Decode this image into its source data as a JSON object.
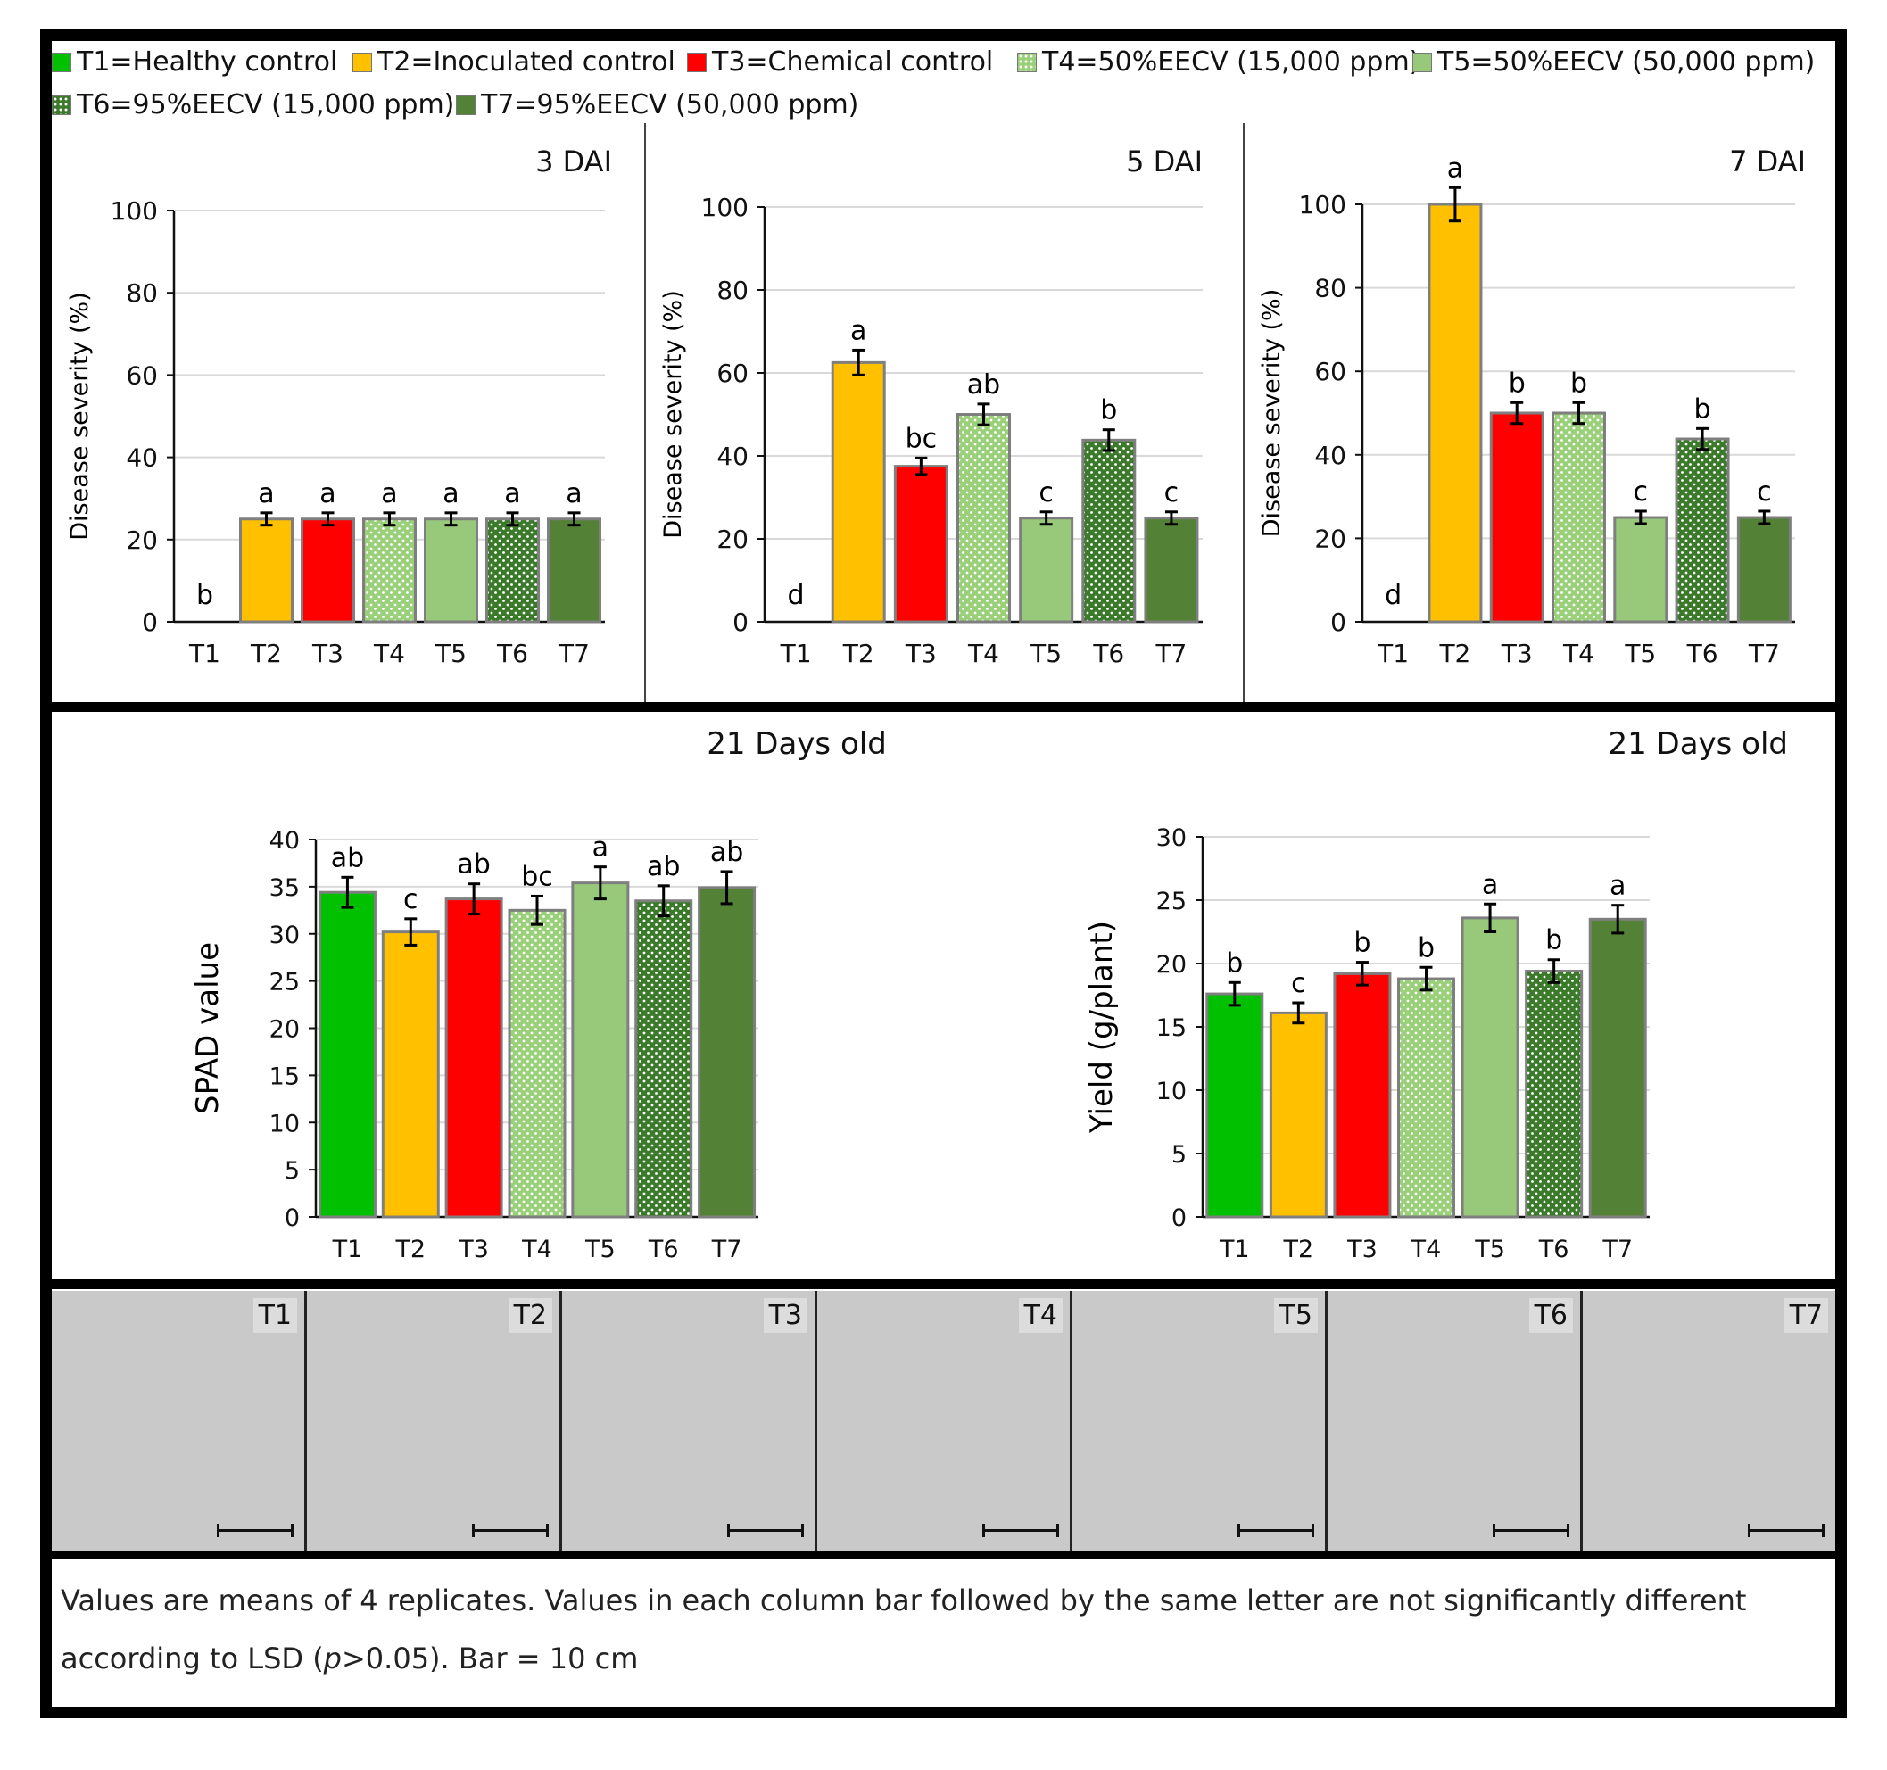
{
  "legend": [
    {
      "key": "T1",
      "label": "T1=Healthy control",
      "color": "#00c000",
      "pattern": "solid"
    },
    {
      "key": "T2",
      "label": "T2=Inoculated control",
      "color": "#ffc000",
      "pattern": "solid"
    },
    {
      "key": "T3",
      "label": "T3=Chemical control",
      "color": "#ff0000",
      "pattern": "solid"
    },
    {
      "key": "T4",
      "label": "T4=50%EECV (15,000 ppm)",
      "color": "#9bd07b",
      "pattern": "dots"
    },
    {
      "key": "T5",
      "label": "T5=50%EECV (50,000 ppm)",
      "color": "#98c97a",
      "pattern": "solid"
    },
    {
      "key": "T6",
      "label": "T6=95%EECV (15,000 ppm)",
      "color": "#3c7a2b",
      "pattern": "dots"
    },
    {
      "key": "T7",
      "label": "T7=95%EECV (50,000 ppm)",
      "color": "#538135",
      "pattern": "solid"
    }
  ],
  "chart_data": [
    {
      "type": "bar",
      "title": "3 DAI",
      "ylabel": "Disease severity (%)",
      "xlabel": "",
      "ylim": [
        0,
        100
      ],
      "yticks": [
        0,
        20,
        40,
        60,
        80,
        100
      ],
      "categories": [
        "T1",
        "T2",
        "T3",
        "T4",
        "T5",
        "T6",
        "T7"
      ],
      "values": [
        0,
        25,
        25,
        25,
        25,
        25,
        25
      ],
      "errors": [
        0,
        1.5,
        1.5,
        1.5,
        1.5,
        1.5,
        1.5
      ],
      "letters": [
        "b",
        "a",
        "a",
        "a",
        "a",
        "a",
        "a"
      ]
    },
    {
      "type": "bar",
      "title": "5 DAI",
      "ylabel": "Disease severity (%)",
      "xlabel": "",
      "ylim": [
        0,
        100
      ],
      "yticks": [
        0,
        20,
        40,
        60,
        80,
        100
      ],
      "categories": [
        "T1",
        "T2",
        "T3",
        "T4",
        "T5",
        "T6",
        "T7"
      ],
      "values": [
        0,
        62.5,
        37.5,
        50,
        25,
        43.8,
        25
      ],
      "errors": [
        0,
        3,
        2,
        2.5,
        1.5,
        2.5,
        1.5
      ],
      "letters": [
        "d",
        "a",
        "bc",
        "ab",
        "c",
        "b",
        "c"
      ]
    },
    {
      "type": "bar",
      "title": "7 DAI",
      "ylabel": "Disease severity (%)",
      "xlabel": "",
      "ylim": [
        0,
        100
      ],
      "yticks": [
        0,
        20,
        40,
        60,
        80,
        100
      ],
      "categories": [
        "T1",
        "T2",
        "T3",
        "T4",
        "T5",
        "T6",
        "T7"
      ],
      "values": [
        0,
        100,
        50,
        50,
        25,
        43.8,
        25
      ],
      "errors": [
        0,
        4,
        2.5,
        2.5,
        1.5,
        2.5,
        1.5
      ],
      "letters": [
        "d",
        "a",
        "b",
        "b",
        "c",
        "b",
        "c"
      ]
    },
    {
      "type": "bar",
      "title": "21 Days old",
      "ylabel": "SPAD value",
      "xlabel": "",
      "ylim": [
        0,
        40
      ],
      "yticks": [
        0,
        5,
        10,
        15,
        20,
        25,
        30,
        35,
        40
      ],
      "categories": [
        "T1",
        "T2",
        "T3",
        "T4",
        "T5",
        "T6",
        "T7"
      ],
      "values": [
        34.4,
        30.2,
        33.7,
        32.5,
        35.4,
        33.5,
        34.9
      ],
      "errors": [
        1.6,
        1.4,
        1.6,
        1.5,
        1.7,
        1.6,
        1.7
      ],
      "letters": [
        "ab",
        "c",
        "ab",
        "bc",
        "a",
        "ab",
        "ab"
      ]
    },
    {
      "type": "bar",
      "title": "21 Days old",
      "ylabel": "Yield (g/plant)",
      "xlabel": "",
      "ylim": [
        0,
        30
      ],
      "yticks": [
        0,
        5,
        10,
        15,
        20,
        25,
        30
      ],
      "categories": [
        "T1",
        "T2",
        "T3",
        "T4",
        "T5",
        "T6",
        "T7"
      ],
      "values": [
        17.6,
        16.1,
        19.2,
        18.8,
        23.6,
        19.4,
        23.5
      ],
      "errors": [
        0.9,
        0.8,
        0.9,
        0.9,
        1.1,
        0.9,
        1.1
      ],
      "letters": [
        "b",
        "c",
        "b",
        "b",
        "a",
        "b",
        "a"
      ]
    }
  ],
  "photos": [
    {
      "label": "T1"
    },
    {
      "label": "T2"
    },
    {
      "label": "T3"
    },
    {
      "label": "T4"
    },
    {
      "label": "T5"
    },
    {
      "label": "T6"
    },
    {
      "label": "T7"
    }
  ],
  "caption": {
    "text_a": "Values are means of 4 replicates. Values in each column bar followed by the same letter are not significantly different according to LSD (",
    "p_symbol": "p",
    "text_b": ">0.05). Bar = 10 cm"
  }
}
